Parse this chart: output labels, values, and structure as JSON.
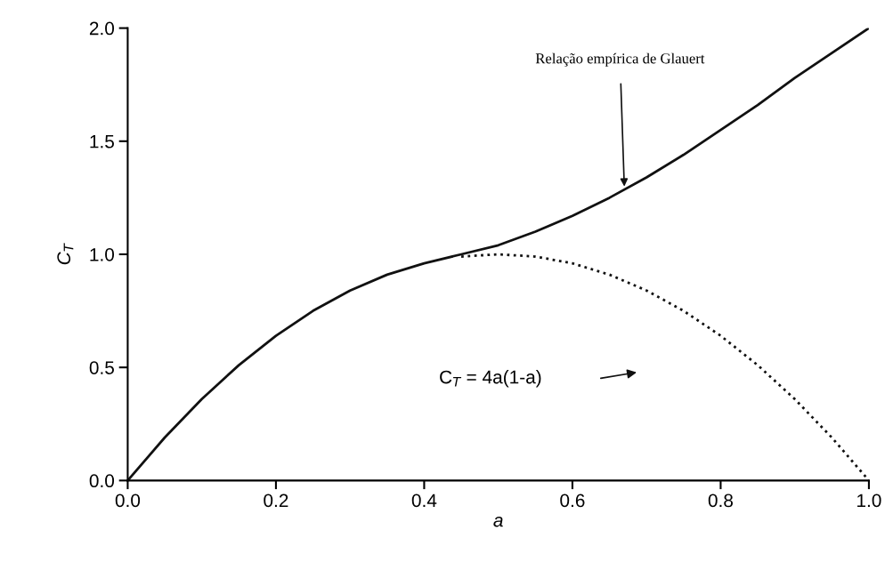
{
  "chart_data": {
    "type": "line",
    "xlabel": "a",
    "ylabel": "C$_{T}$",
    "xlim": [
      0.0,
      1.0
    ],
    "xticks": [
      {
        "value": 0,
        "label": "0.0"
      },
      0.2,
      0.4,
      0.6,
      0.8,
      {
        "value": 1,
        "label": "1.0"
      }
    ],
    "ylim": [
      0.0,
      2.0
    ],
    "yticks": [
      {
        "value": 0,
        "label": "0.0"
      },
      0.5,
      {
        "value": 1,
        "label": "1.0"
      },
      1.5,
      {
        "value": 2,
        "label": "2.0"
      }
    ],
    "grid": false,
    "legend": false,
    "series": [
      {
        "color": "#111111",
        "line_style": "solid",
        "x": [
          0,
          0.05,
          0.1,
          0.15,
          0.2,
          0.25,
          0.3,
          0.35,
          0.4,
          0.45,
          0.5,
          0.55,
          0.6,
          0.65,
          0.7,
          0.75,
          0.8,
          0.85,
          0.9,
          0.95,
          1.0
        ],
        "values": [
          0,
          0.19,
          0.36,
          0.51,
          0.64,
          0.75,
          0.84,
          0.91,
          0.96,
          1.0,
          1.04,
          1.1,
          1.17,
          1.25,
          1.34,
          1.44,
          1.55,
          1.66,
          1.78,
          1.89,
          2.0
        ]
      },
      {
        "color": "#111111",
        "line_style": "dotted",
        "x": [
          0.45,
          0.5,
          0.55,
          0.6,
          0.65,
          0.7,
          0.75,
          0.8,
          0.85,
          0.9,
          0.95,
          1.0
        ],
        "values": [
          0.99,
          1.0,
          0.99,
          0.96,
          0.91,
          0.84,
          0.75,
          0.64,
          0.51,
          0.36,
          0.19,
          0.0
        ]
      }
    ],
    "annotations": [
      {
        "text": "Relação empírica de Glauert",
        "x": 0.67,
        "y": 1.3
      },
      "C$_{T}$ = 4a(1-a)"
    ]
  }
}
